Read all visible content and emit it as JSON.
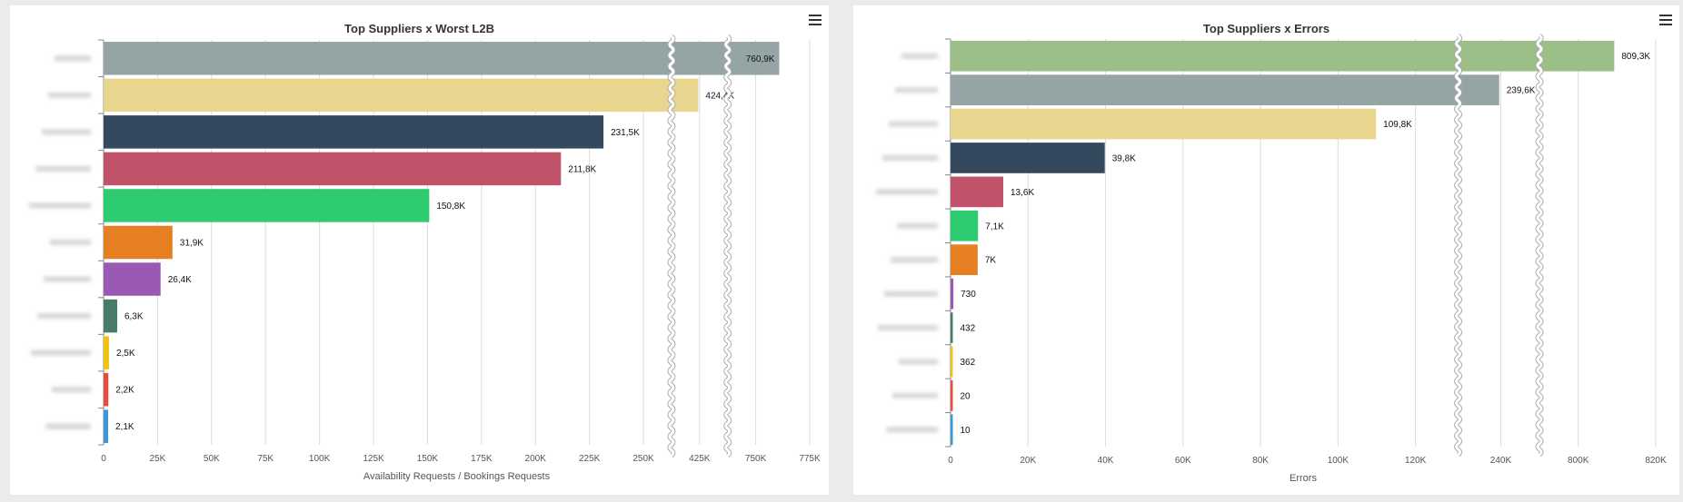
{
  "charts": {
    "left": {
      "menu_icon": "hamburger-menu-icon"
    },
    "right": {
      "menu_icon": "hamburger-menu-icon"
    }
  },
  "chart_data": [
    {
      "type": "bar",
      "orientation": "horizontal",
      "title": "Top Suppliers x Worst L2B",
      "xlabel": "Availability Requests / Bookings Requests",
      "ylabel": "",
      "category_labels_blurred": true,
      "values": [
        760900,
        424400,
        231500,
        211800,
        150800,
        31900,
        26400,
        6300,
        2500,
        2200,
        2100
      ],
      "value_labels": [
        "760,9K",
        "424,4K",
        "231,5K",
        "211,8K",
        "150,8K",
        "31,9K",
        "26,4K",
        "6,3K",
        "2,5K",
        "2,2K",
        "2,1K"
      ],
      "colors": [
        "#95a5a6",
        "#e8d68e",
        "#34495e",
        "#c0536a",
        "#2ecc71",
        "#e67e22",
        "#9b59b6",
        "#467c69",
        "#f1c40f",
        "#e74c3c",
        "#3498db"
      ],
      "xlim": [
        0,
        775000
      ],
      "axis_breaks": [
        [
          263000,
          412000
        ],
        [
          438000,
          737000
        ]
      ],
      "xticks": [
        0,
        25000,
        50000,
        75000,
        100000,
        125000,
        150000,
        175000,
        200000,
        225000,
        250000,
        425000,
        750000,
        775000
      ],
      "xtick_labels": [
        "0",
        "25K",
        "50K",
        "75K",
        "100K",
        "125K",
        "150K",
        "175K",
        "200K",
        "225K",
        "250K",
        "425K",
        "750K",
        "775K"
      ],
      "grid": true
    },
    {
      "type": "bar",
      "orientation": "horizontal",
      "title": "Top Suppliers x Errors",
      "xlabel": "Errors",
      "ylabel": "",
      "category_labels_blurred": true,
      "values": [
        809300,
        239600,
        109800,
        39800,
        13600,
        7100,
        7000,
        730,
        432,
        362,
        20,
        10
      ],
      "value_labels": [
        "809,3K",
        "239,6K",
        "109,8K",
        "39,8K",
        "13,6K",
        "7,1K",
        "7K",
        "730",
        "432",
        "362",
        "20",
        "10"
      ],
      "colors": [
        "#9bbf87",
        "#95a5a6",
        "#e8d68e",
        "#34495e",
        "#c0536a",
        "#2ecc71",
        "#e67e22",
        "#9b59b6",
        "#467c69",
        "#f1c40f",
        "#e74c3c",
        "#3498db"
      ],
      "xlim": [
        0,
        820000
      ],
      "axis_breaks": [
        [
          131000,
          229000
        ],
        [
          250000,
          790000
        ]
      ],
      "xticks": [
        0,
        20000,
        40000,
        60000,
        80000,
        100000,
        120000,
        240000,
        800000,
        820000
      ],
      "xtick_labels": [
        "0",
        "20K",
        "40K",
        "60K",
        "80K",
        "100K",
        "120K",
        "240K",
        "800K",
        "820K"
      ],
      "grid": true
    }
  ]
}
